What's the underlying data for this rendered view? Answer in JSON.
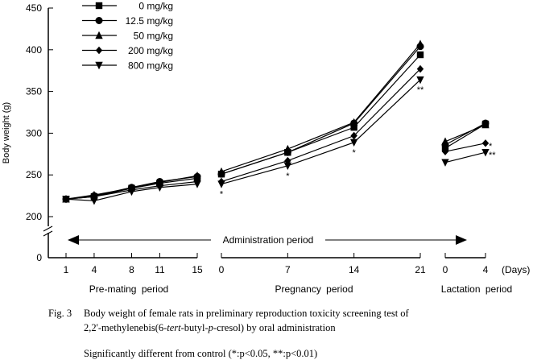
{
  "chart_data": {
    "type": "line",
    "ylabel": "Body weight (g)",
    "xlabel_unit": "(Days)",
    "y_ticks": [
      0,
      200,
      250,
      300,
      350,
      400,
      450
    ],
    "ylim": [
      0,
      450
    ],
    "y_axis_break": "between 0 and 200",
    "grid": false,
    "legend_placement": "top-left",
    "segments": [
      {
        "name": "Pre-mating period",
        "x": [
          1,
          4,
          8,
          11,
          15
        ]
      },
      {
        "name": "Pregnancy period",
        "x": [
          0,
          7,
          14,
          21
        ]
      },
      {
        "name": "Lactation period",
        "x": [
          0,
          4
        ]
      }
    ],
    "annotation": "Administration period",
    "series": [
      {
        "name": "0 mg/kg",
        "marker": "square",
        "values": [
          [
            221,
            224,
            234,
            240,
            246
          ],
          [
            251,
            277,
            307,
            394
          ],
          [
            282,
            311
          ]
        ]
      },
      {
        "name": "12.5 mg/kg",
        "marker": "circle",
        "values": [
          [
            221,
            225,
            235,
            242,
            248
          ],
          [
            251,
            277,
            312,
            404
          ],
          [
            286,
            312
          ]
        ]
      },
      {
        "name": "50 mg/kg",
        "marker": "triangle-up",
        "values": [
          [
            221,
            226,
            234,
            241,
            249
          ],
          [
            254,
            281,
            313,
            407
          ],
          [
            290,
            310
          ]
        ]
      },
      {
        "name": "200 mg/kg",
        "marker": "diamond",
        "values": [
          [
            221,
            224,
            232,
            237,
            242
          ],
          [
            242,
            267,
            297,
            377
          ],
          [
            278,
            288
          ]
        ]
      },
      {
        "name": "800 mg/kg",
        "marker": "triangle-down",
        "values": [
          [
            221,
            219,
            230,
            235,
            239
          ],
          [
            239,
            261,
            289,
            364
          ],
          [
            265,
            277
          ]
        ]
      }
    ],
    "significance": [
      {
        "segment": 1,
        "x_index": 0,
        "label": "*"
      },
      {
        "segment": 1,
        "x_index": 1,
        "label": "*"
      },
      {
        "segment": 1,
        "x_index": 2,
        "label": "*"
      },
      {
        "segment": 1,
        "x_index": 3,
        "label": "**"
      },
      {
        "segment": 2,
        "x_index": 1,
        "series": "200 mg/kg",
        "label": "*"
      },
      {
        "segment": 2,
        "x_index": 1,
        "series": "800 mg/kg",
        "label": "**"
      }
    ]
  },
  "caption": {
    "fig_label": "Fig. 3",
    "line1": "Body weight of female rats in preliminary reproduction toxicity screening test of",
    "line2_pre": "2,2'-methylenebis(6-",
    "line2_it1": "tert",
    "line2_mid": "-butyl-",
    "line2_it2": "p",
    "line2_post": "-cresol) by oral administration",
    "line3": "Significantly different from control (*:p<0.05,  **:p<0.01)"
  }
}
